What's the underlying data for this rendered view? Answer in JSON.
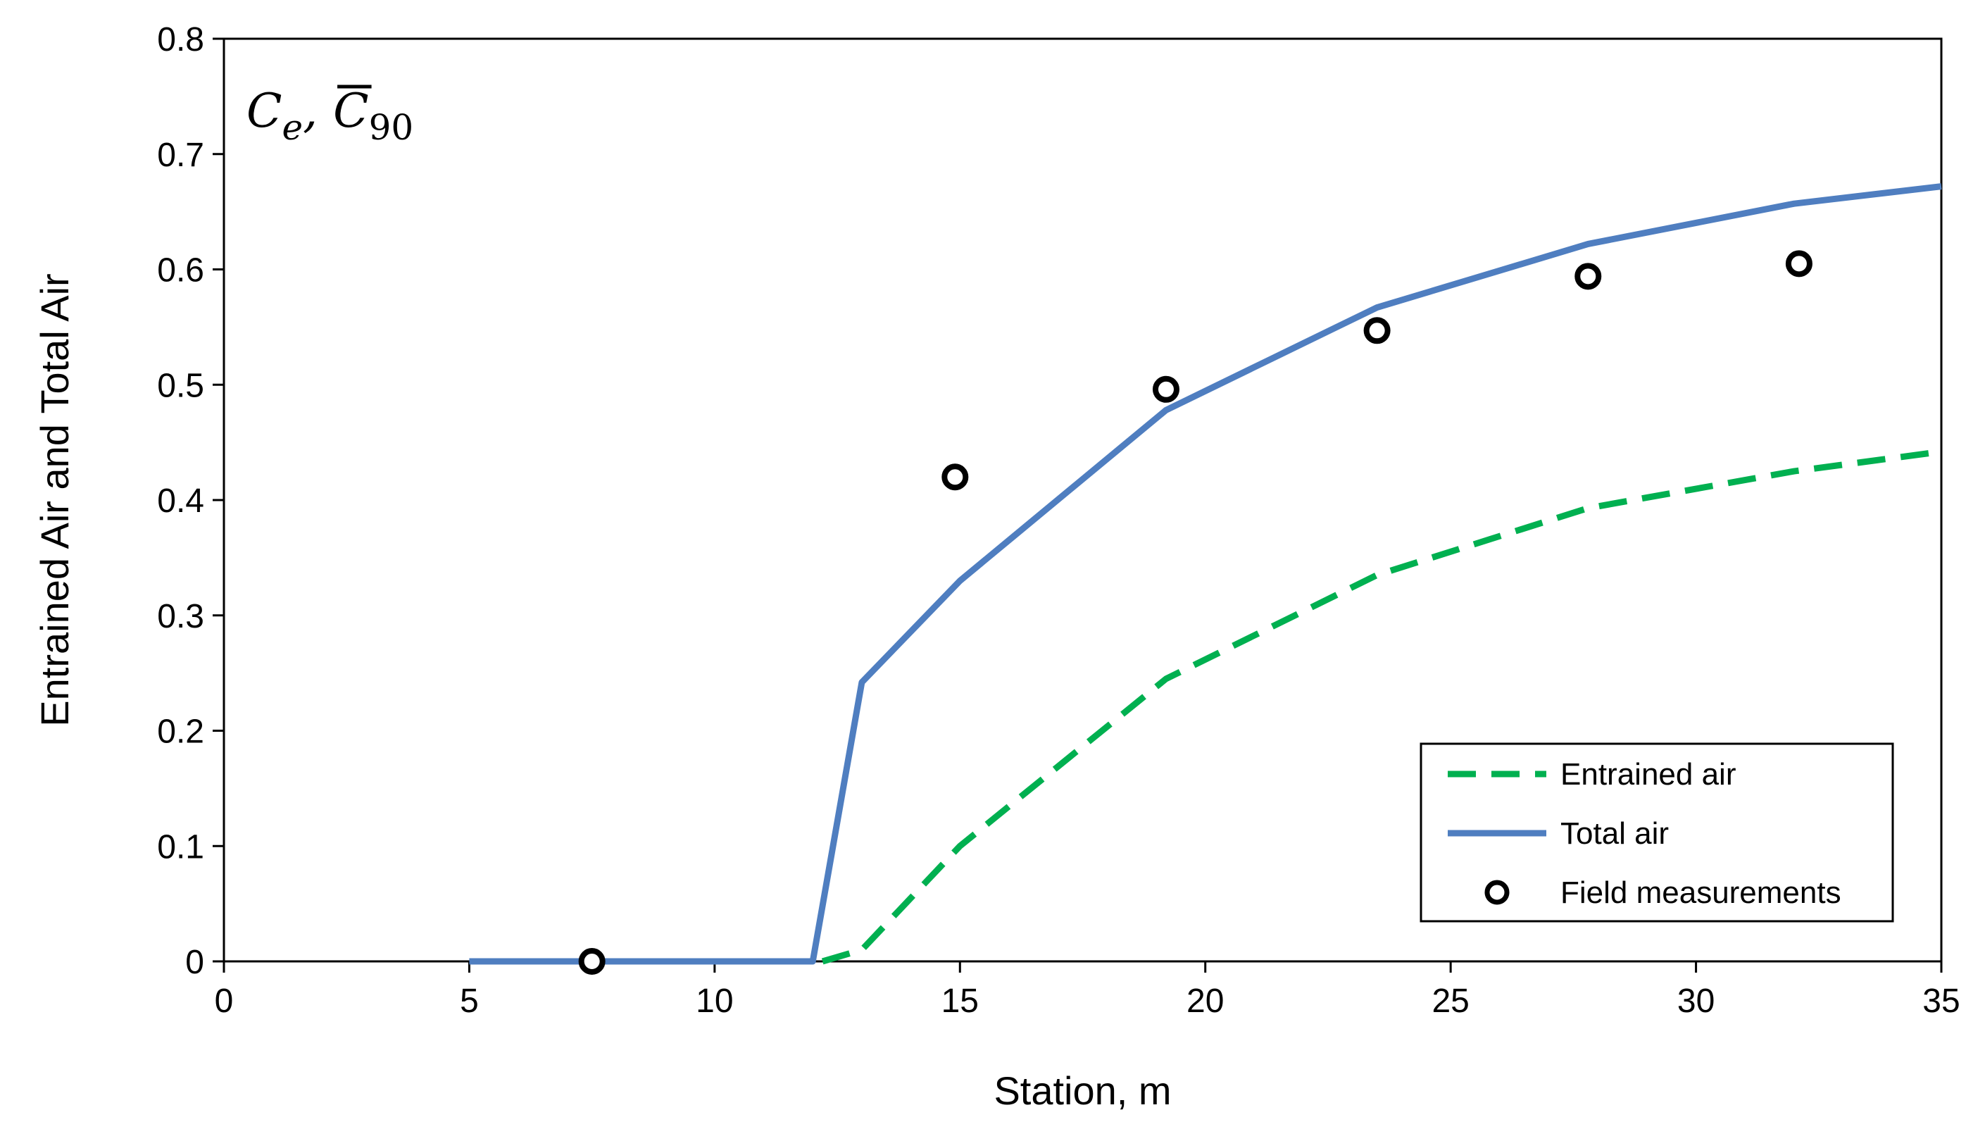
{
  "chart_data": {
    "type": "line",
    "xlabel": "Station, m",
    "ylabel": "Entrained Air and Total Air",
    "annotation": {
      "main1": "C",
      "sub1": "e",
      "sep": ",",
      "main2": "C",
      "sub2": "90"
    },
    "xlim": [
      0,
      35
    ],
    "ylim": [
      0,
      0.8
    ],
    "xticks": [
      0,
      5,
      10,
      15,
      20,
      25,
      30,
      35
    ],
    "yticks": [
      0,
      0.1,
      0.2,
      0.3,
      0.4,
      0.5,
      0.6,
      0.7,
      0.8
    ],
    "grid": false,
    "legend_position": "bottom-right",
    "series": [
      {
        "name": "Entrained air",
        "kind": "line",
        "style": "dashed",
        "color": "#00B050",
        "x": [
          12.2,
          13.0,
          15.0,
          19.2,
          23.5,
          27.8,
          32.0,
          35.0
        ],
        "y": [
          0,
          0.01,
          0.1,
          0.245,
          0.335,
          0.393,
          0.425,
          0.442
        ]
      },
      {
        "name": "Total air",
        "kind": "line",
        "style": "solid",
        "color": "#4F7EC0",
        "x": [
          5,
          7.5,
          12.0,
          13.0,
          15.0,
          19.2,
          23.5,
          27.8,
          32.0,
          35.0
        ],
        "y": [
          0,
          0,
          0,
          0.242,
          0.33,
          0.478,
          0.567,
          0.622,
          0.657,
          0.672
        ]
      },
      {
        "name": "Field measurements",
        "kind": "scatter",
        "marker": "open-circle",
        "color": "#000000",
        "x": [
          7.5,
          14.9,
          19.2,
          23.5,
          27.8,
          32.1
        ],
        "y": [
          0,
          0.42,
          0.496,
          0.547,
          0.594,
          0.605
        ]
      }
    ]
  }
}
